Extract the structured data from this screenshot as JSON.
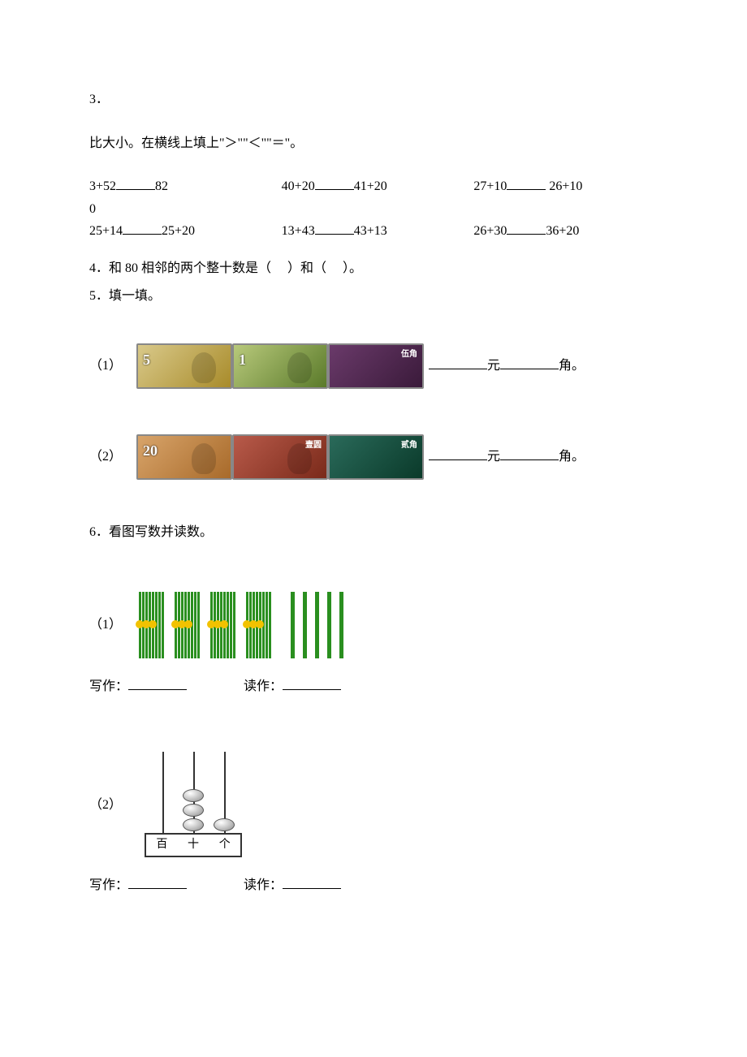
{
  "q3": {
    "number": "3．",
    "instr": "比大小。在横线上填上\"＞\"\"＜\"\"＝\"。",
    "items": [
      {
        "a": "3+52",
        "b": "82"
      },
      {
        "a": "40+20",
        "b": "41+20"
      },
      {
        "a": "27+10",
        "b": "26+10",
        "tail": "0"
      },
      {
        "a": "25+14",
        "b": "25+20"
      },
      {
        "a": "13+43",
        "b": "43+13"
      },
      {
        "a": "26+30",
        "b": "36+20"
      }
    ]
  },
  "q4": {
    "text_a": "4．和 80 相邻的两个整十数是（",
    "text_b": "）和（",
    "text_c": "）。"
  },
  "q5": {
    "title": "5．填一填。",
    "row1_label": "（1）",
    "row2_label": "（2）",
    "yuan": "元",
    "jiao": "角。",
    "row1_notes": [
      {
        "denom": "5",
        "bg": "#d9c98a",
        "accent": "#a88b2a",
        "port": true,
        "txt": ""
      },
      {
        "denom": "1",
        "bg": "#b8c97b",
        "accent": "#5a7a2a",
        "port": true,
        "txt": ""
      },
      {
        "denom": "",
        "bg": "#6a3a6a",
        "accent": "#3a1a3a",
        "port": false,
        "txt": "伍角"
      }
    ],
    "row2_notes": [
      {
        "denom": "20",
        "bg": "#d8a46a",
        "accent": "#a86a2a",
        "port": true,
        "txt": ""
      },
      {
        "denom": "",
        "bg": "#b85a4a",
        "accent": "#7a2a1a",
        "port": true,
        "txt": "壹圆"
      },
      {
        "denom": "",
        "bg": "#2a6a5a",
        "accent": "#0a3a2a",
        "port": false,
        "txt": "贰角"
      }
    ]
  },
  "q6": {
    "title": "6．看图写数并读数。",
    "row1_label": "（1）",
    "row2_label": "（2）",
    "sticks": {
      "bundles": 4,
      "singles": 5
    },
    "abacus": {
      "labels": [
        "百",
        "十",
        "个"
      ],
      "beads": {
        "c1": 0,
        "c2": 3,
        "c3": 1
      },
      "bead_color_stops": [
        "#ffffff",
        "#bbbbbb",
        "#888888"
      ]
    },
    "write": "写作：",
    "read": "读作："
  },
  "colors": {
    "text": "#000000",
    "stick": "#2a8f1f",
    "tie": "#f2c200",
    "background": "#ffffff"
  }
}
